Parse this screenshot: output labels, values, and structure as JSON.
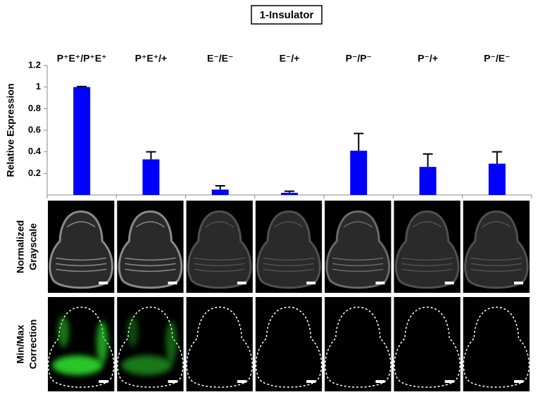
{
  "chart_data": {
    "type": "bar",
    "title": "1-Insulator",
    "categories": [
      "P⁺E⁺/P⁺E⁺",
      "P⁺E⁺/+",
      "E⁻/E⁻",
      "E⁻/+",
      "P⁻/P⁻",
      "P⁻/+",
      "P⁻/E⁻"
    ],
    "values": [
      1.0,
      0.33,
      0.05,
      0.02,
      0.41,
      0.26,
      0.29
    ],
    "errors": [
      0.005,
      0.07,
      0.035,
      0.015,
      0.16,
      0.12,
      0.11
    ],
    "color": "#0000ff",
    "y_label": "Relative Expression",
    "ylim": [
      0,
      1.2
    ],
    "yticks": [
      0.2,
      0.4,
      0.6,
      0.8,
      1,
      1.2
    ],
    "row_labels": [
      [
        "Normalized",
        "Grayscale"
      ],
      [
        "Min/Max",
        "Correction"
      ]
    ]
  }
}
